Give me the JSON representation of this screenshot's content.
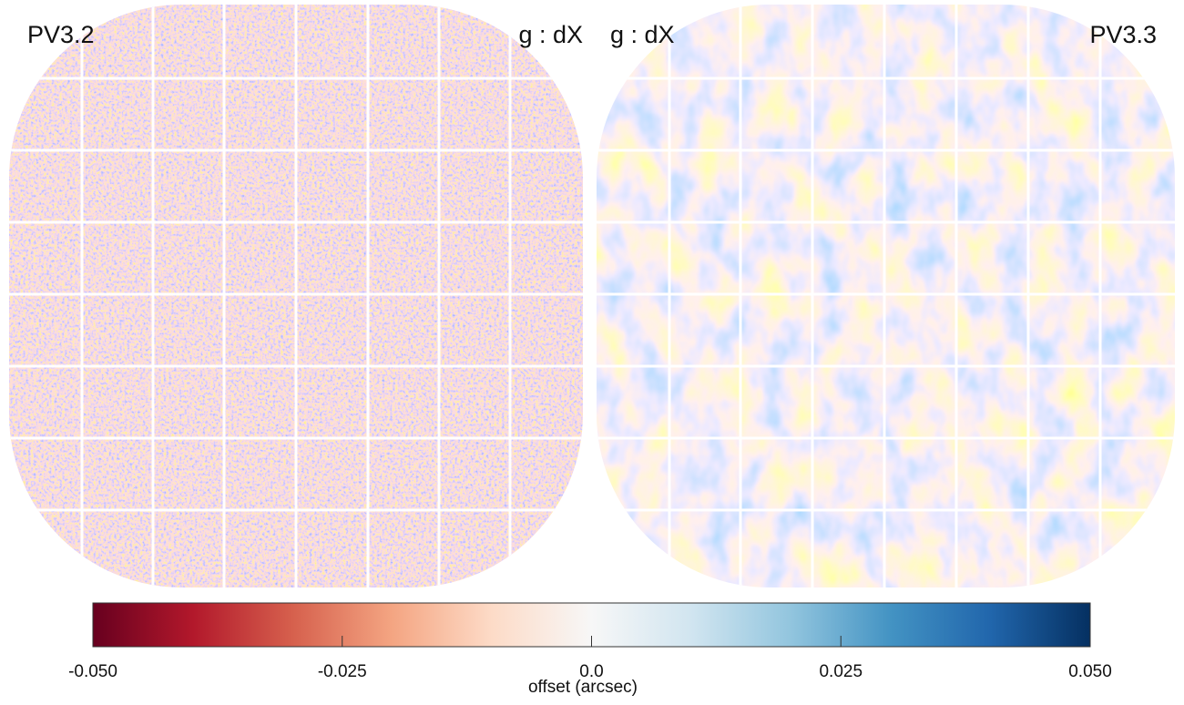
{
  "chart_data": {
    "type": "heatmap",
    "panels": [
      {
        "label": "PV3.2",
        "band_label": "g : dX"
      },
      {
        "label": "PV3.3",
        "band_label": "g : dX"
      }
    ],
    "colorbar": {
      "label": "offset (arcsec)",
      "lim": [
        -0.05,
        0.05
      ],
      "ticks": [
        {
          "value": -0.05,
          "label": "-0.050"
        },
        {
          "value": -0.025,
          "label": "-0.025"
        },
        {
          "value": 0,
          "label": "0.0"
        },
        {
          "value": 0.025,
          "label": "0.025"
        },
        {
          "value": 0.05,
          "label": "0.050"
        }
      ],
      "colors": [
        "#67001f",
        "#b2182b",
        "#d6604d",
        "#f4a582",
        "#fddbc7",
        "#f7f7f7",
        "#d1e5f0",
        "#92c5de",
        "#4393c3",
        "#2166ac",
        "#053061"
      ]
    }
  }
}
